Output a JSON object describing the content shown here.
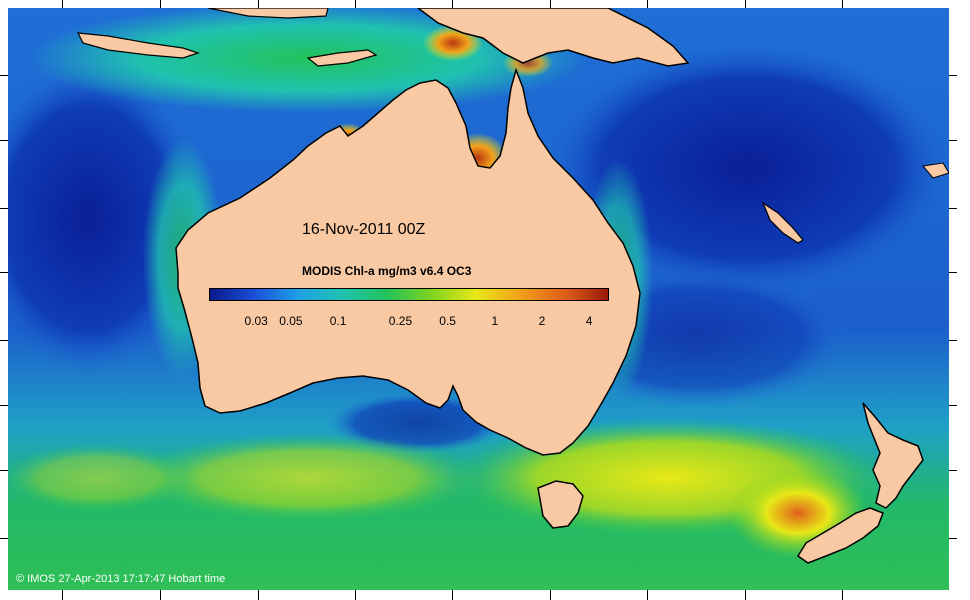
{
  "map": {
    "title": "16-Nov-2011 00Z",
    "copyright": "© IMOS 27-Apr-2013 17:17:47 Hobart time",
    "colors": {
      "land": "#f8c9a3",
      "coast": "#000000",
      "deep_ocean": "#0b2fa8",
      "open_ocean": "#1f6fd6",
      "shelf": "#22b86a",
      "productive": "#e7e23a",
      "bloom": "#d2691e"
    }
  },
  "colorbar": {
    "title": "MODIS Chl-a mg/m3 v6.4 OC3",
    "gradient": [
      "#0a1a8c",
      "#1b4fd8",
      "#1fa0e6",
      "#20c2b0",
      "#22c25a",
      "#7ed321",
      "#e8e817",
      "#f2a21a",
      "#e0601a",
      "#9a1a0a"
    ],
    "ticks": [
      {
        "label": "0.03",
        "value": 0.03
      },
      {
        "label": "0.05",
        "value": 0.05
      },
      {
        "label": "0.1",
        "value": 0.1
      },
      {
        "label": "0.25",
        "value": 0.25
      },
      {
        "label": "0.5",
        "value": 0.5
      },
      {
        "label": "1",
        "value": 1
      },
      {
        "label": "2",
        "value": 2
      },
      {
        "label": "4",
        "value": 4
      }
    ]
  }
}
